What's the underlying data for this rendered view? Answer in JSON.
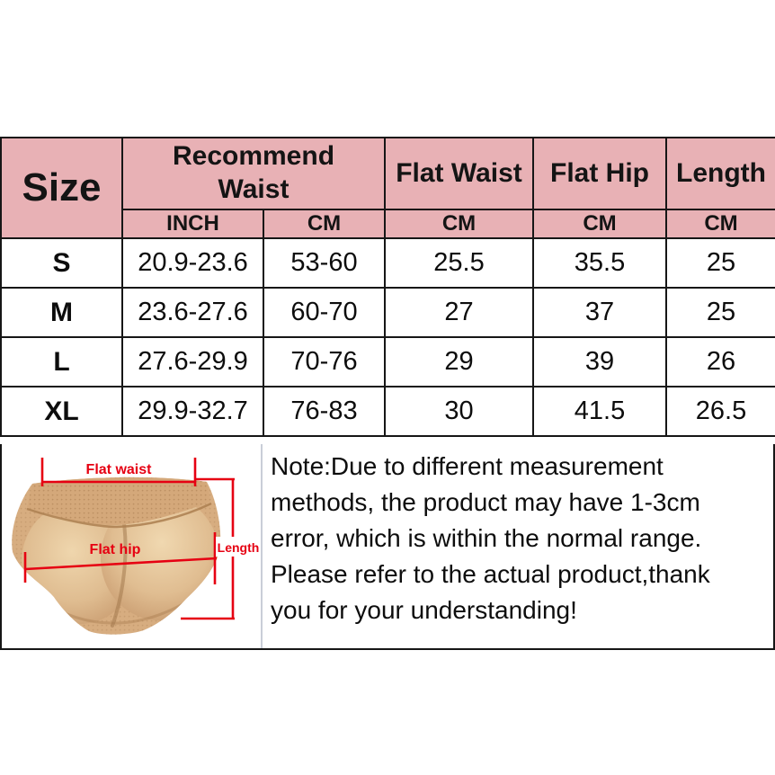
{
  "colors": {
    "header_pink": "#e8b1b5",
    "border_black": "#161616",
    "annotation_red": "#e60012",
    "divider_gray": "#c9ced8",
    "fabric_beige": "#d7ad80"
  },
  "chart_data": {
    "type": "table",
    "title": "Size chart",
    "columns": [
      "Size",
      "Recommend Waist INCH",
      "Recommend Waist CM",
      "Flat Waist CM",
      "Flat Hip CM",
      "Length CM"
    ],
    "rows": [
      [
        "S",
        "20.9-23.6",
        "53-60",
        "25.5",
        "35.5",
        "25"
      ],
      [
        "M",
        "23.6-27.6",
        "60-70",
        "27",
        "37",
        "25"
      ],
      [
        "L",
        "27.6-29.9",
        "70-76",
        "29",
        "39",
        "26"
      ],
      [
        "XL",
        "29.9-32.7",
        "76-83",
        "30",
        "41.5",
        "26.5"
      ]
    ]
  },
  "table": {
    "header": {
      "size": "Size",
      "recommend_waist": "Recommend Waist",
      "flat_waist": "Flat Waist",
      "flat_hip": "Flat Hip",
      "length": "Length",
      "units": [
        "INCH",
        "CM",
        "CM",
        "CM",
        "CM"
      ]
    }
  },
  "diagram": {
    "flat_waist_label": "Flat waist",
    "flat_hip_label": "Flat hip",
    "length_label": "Length"
  },
  "note": {
    "lines": [
      "Note:Due to different measurement",
      "methods, the product may have 1-3cm",
      "error, which is within the normal range.",
      "Please refer to the actual product,thank",
      "you for your understanding!"
    ]
  }
}
